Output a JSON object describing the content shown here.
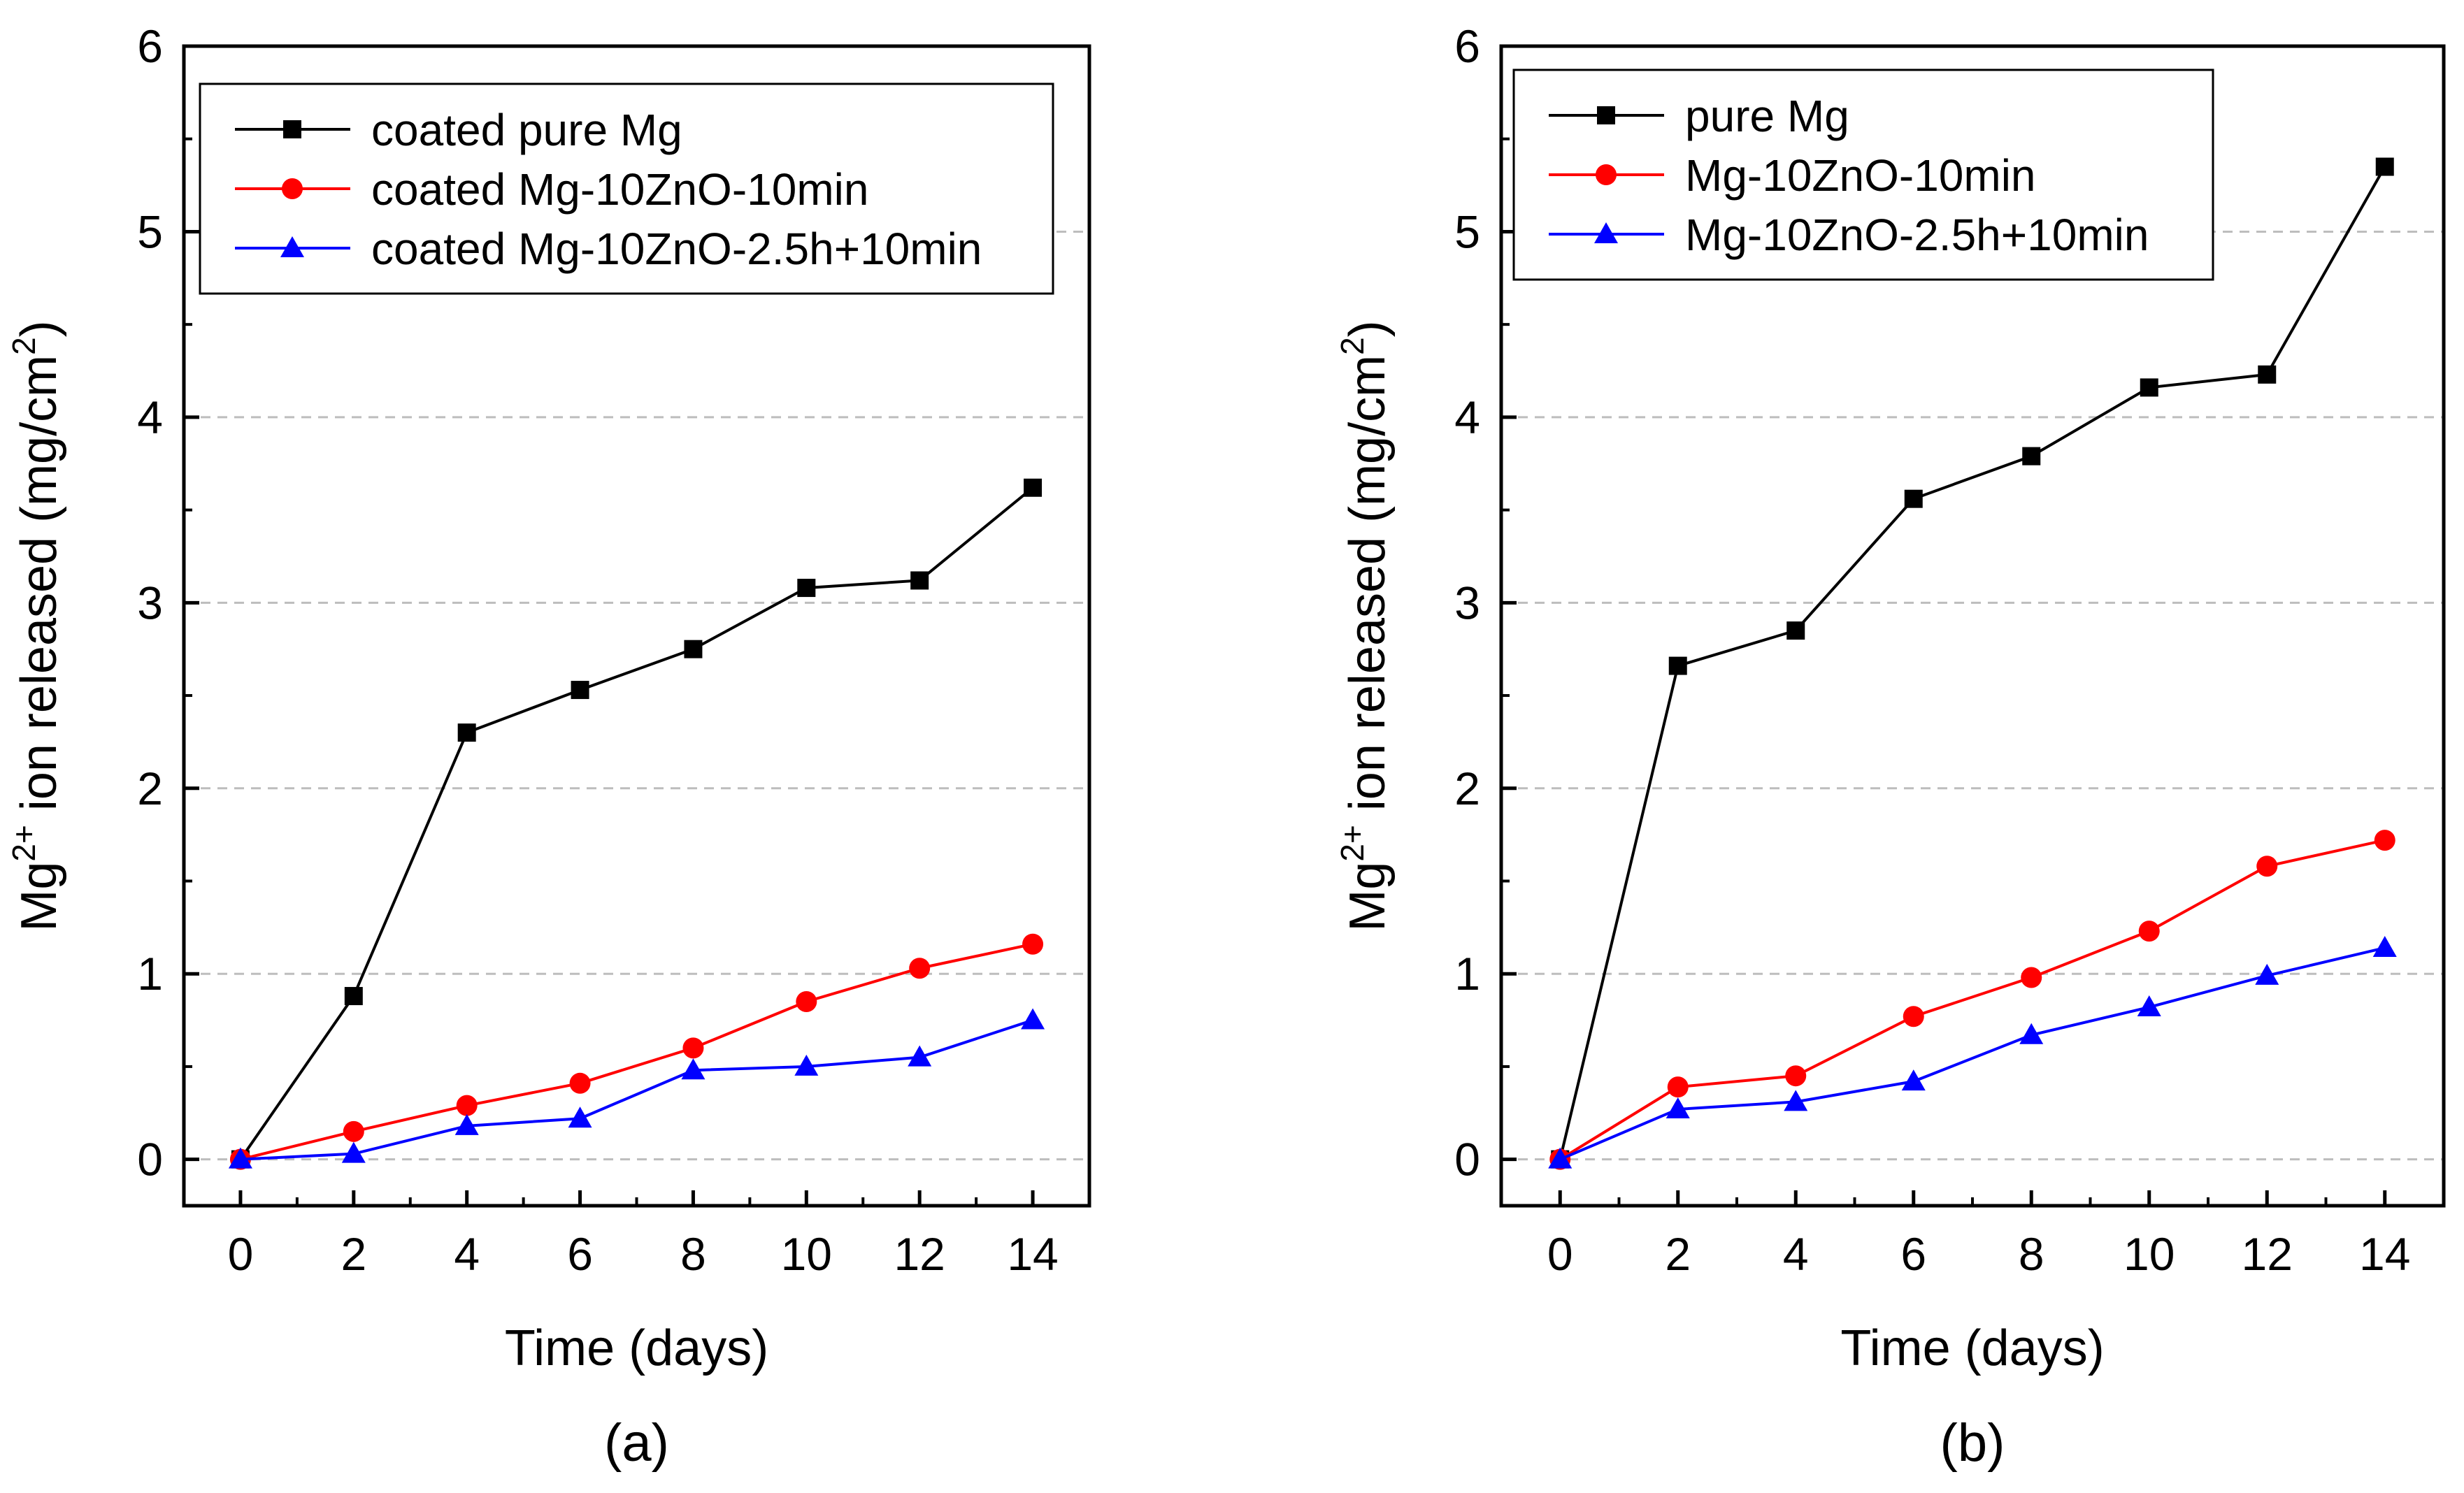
{
  "chart_data": [
    {
      "type": "line",
      "panel_label": "(a)",
      "xlabel": "Time (days)",
      "ylabel_prefix": "Mg",
      "ylabel_superscript": "2+",
      "ylabel_main": " ion released (mg/cm",
      "ylabel_unit_superscript": "2",
      "ylabel_suffix": ")",
      "xlim": [
        -1,
        15
      ],
      "ylim": [
        -0.25,
        6
      ],
      "xticks": [
        "0",
        "2",
        "4",
        "6",
        "8",
        "10",
        "12",
        "14"
      ],
      "yticks": [
        "0",
        "1",
        "2",
        "3",
        "4",
        "5",
        "6"
      ],
      "grid": "horizontal dashed",
      "legend": "top-left",
      "x": [
        0,
        2,
        4,
        6,
        8,
        10,
        12,
        14
      ],
      "series": [
        {
          "name": "coated pure Mg",
          "color": "#000000",
          "marker": "square",
          "values": [
            0,
            0.88,
            2.3,
            2.53,
            2.75,
            3.08,
            3.12,
            3.62
          ]
        },
        {
          "name": "coated Mg-10ZnO-10min",
          "color": "#ff0000",
          "marker": "circle",
          "values": [
            0,
            0.15,
            0.29,
            0.41,
            0.6,
            0.85,
            1.03,
            1.16
          ]
        },
        {
          "name": "coated Mg-10ZnO-2.5h+10min",
          "color": "#0000ff",
          "marker": "triangle",
          "values": [
            0,
            0.03,
            0.18,
            0.22,
            0.48,
            0.5,
            0.55,
            0.75
          ]
        }
      ]
    },
    {
      "type": "line",
      "panel_label": "(b)",
      "xlabel": "Time (days)",
      "ylabel_prefix": "Mg",
      "ylabel_superscript": "2+",
      "ylabel_main": " ion released (mg/cm",
      "ylabel_unit_superscript": "2",
      "ylabel_suffix": ")",
      "xlim": [
        -1,
        15
      ],
      "ylim": [
        -0.25,
        6
      ],
      "xticks": [
        "0",
        "2",
        "4",
        "6",
        "8",
        "10",
        "12",
        "14"
      ],
      "yticks": [
        "0",
        "1",
        "2",
        "3",
        "4",
        "5",
        "6"
      ],
      "grid": "horizontal dashed",
      "legend": "top-left",
      "x": [
        0,
        2,
        4,
        6,
        8,
        10,
        12,
        14
      ],
      "series": [
        {
          "name": "pure Mg",
          "color": "#000000",
          "marker": "square",
          "values": [
            0,
            2.66,
            2.85,
            3.56,
            3.79,
            4.16,
            4.23,
            5.35
          ]
        },
        {
          "name": "Mg-10ZnO-10min",
          "color": "#ff0000",
          "marker": "circle",
          "values": [
            0,
            0.39,
            0.45,
            0.77,
            0.98,
            1.23,
            1.58,
            1.72
          ]
        },
        {
          "name": "Mg-10ZnO-2.5h+10min",
          "color": "#0000ff",
          "marker": "triangle",
          "values": [
            0,
            0.27,
            0.31,
            0.42,
            0.67,
            0.82,
            0.99,
            1.14
          ]
        }
      ]
    }
  ]
}
